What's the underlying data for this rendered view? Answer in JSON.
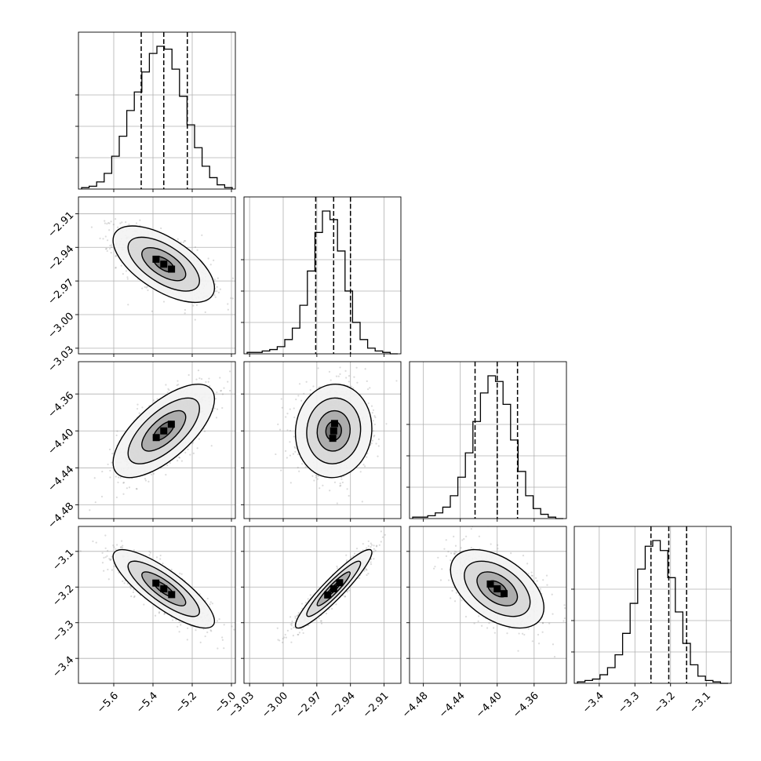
{
  "chart_data": {
    "type": "corner",
    "parameters": [
      {
        "range": [
          -5.78,
          -4.98
        ],
        "quantiles": [
          -5.46,
          -5.345,
          -5.225
        ],
        "ticks": [
          "−5.6",
          "−5.4",
          "−5.2",
          "−5.0"
        ],
        "tick_values": [
          -5.6,
          -5.4,
          -5.2,
          -5.0
        ]
      },
      {
        "range": [
          -3.035,
          -2.895
        ],
        "quantiles": [
          -2.971,
          -2.955,
          -2.94
        ],
        "ticks": [
          "−3.03",
          "−3.00",
          "−2.97",
          "−2.94",
          "−2.91"
        ],
        "tick_values": [
          -3.03,
          -3.0,
          -2.97,
          -2.94,
          -2.91
        ]
      },
      {
        "range": [
          -4.495,
          -4.325
        ],
        "quantiles": [
          -4.424,
          -4.4,
          -4.378
        ],
        "ticks": [
          "−4.48",
          "−4.44",
          "−4.40",
          "−4.36"
        ],
        "tick_values": [
          -4.48,
          -4.44,
          -4.4,
          -4.36
        ]
      },
      {
        "range": [
          -3.47,
          -3.03
        ],
        "quantiles": [
          -3.255,
          -3.205,
          -3.155
        ],
        "ticks": [
          "−3.4",
          "−3.3",
          "−3.2",
          "−3.1"
        ],
        "tick_values": [
          -3.4,
          -3.3,
          -3.2,
          -3.1
        ]
      }
    ],
    "histograms": [
      [
        1,
        2,
        5,
        11,
        23,
        37,
        55,
        68,
        82,
        95,
        100,
        98,
        84,
        65,
        45,
        29,
        16,
        8,
        3,
        1
      ],
      [
        1,
        1,
        2,
        3,
        5,
        10,
        18,
        34,
        58,
        85,
        100,
        94,
        72,
        44,
        22,
        10,
        4,
        2,
        1,
        0
      ],
      [
        1,
        1,
        2,
        4,
        8,
        16,
        29,
        46,
        68,
        88,
        100,
        96,
        80,
        55,
        33,
        16,
        7,
        3,
        1,
        0
      ],
      [
        1,
        2,
        3,
        6,
        11,
        20,
        35,
        56,
        80,
        96,
        100,
        93,
        74,
        50,
        28,
        13,
        5,
        2,
        1,
        0
      ]
    ],
    "correlations": [
      {
        "row": 1,
        "col": 0,
        "rho": -0.62
      },
      {
        "row": 2,
        "col": 0,
        "rho": 0.68
      },
      {
        "row": 2,
        "col": 1,
        "rho": 0.05
      },
      {
        "row": 3,
        "col": 0,
        "rho": -0.82
      },
      {
        "row": 3,
        "col": 1,
        "rho": 0.93
      },
      {
        "row": 3,
        "col": 2,
        "rho": -0.48
      }
    ],
    "grid": true
  }
}
